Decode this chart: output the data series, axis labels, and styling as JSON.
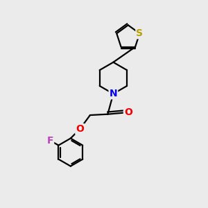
{
  "bg_color": "#ebebeb",
  "bond_color": "#000000",
  "bond_width": 1.6,
  "atom_colors": {
    "S": "#b8a000",
    "N": "#0000ee",
    "O": "#ee0000",
    "F": "#bb44bb",
    "C": "#000000"
  },
  "font_size": 10
}
